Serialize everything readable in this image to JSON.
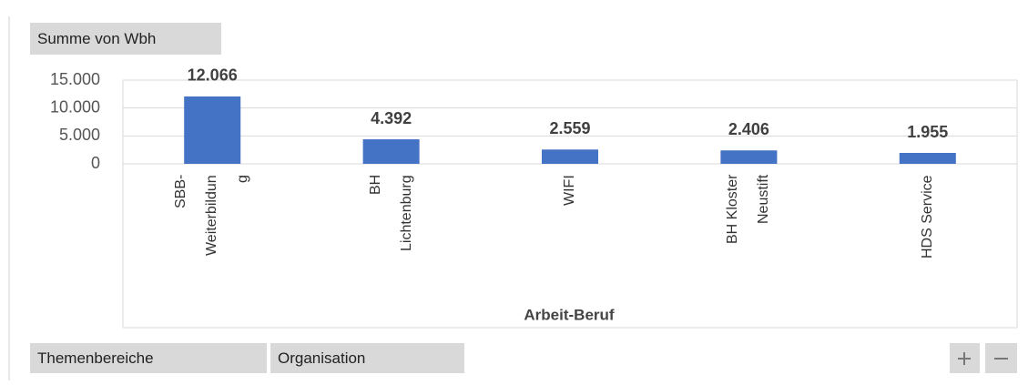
{
  "chart_data": {
    "type": "bar",
    "field_button": "Summe von Wbh",
    "x_label": "Arbeit-Beruf",
    "categories": [
      "SBB-Weiterbildung",
      "BH Lichtenburg",
      "WIFI",
      "BH Kloster Neustift",
      "HDS Service"
    ],
    "values": [
      12066,
      4392,
      2559,
      2406,
      1955
    ],
    "value_labels": [
      "12.066",
      "4.392",
      "2.559",
      "2.406",
      "1.955"
    ],
    "color": "#4472c4",
    "ylim": [
      0,
      15000
    ],
    "yticks": [
      0,
      {
        "value": 5000,
        "label": "5.000"
      },
      {
        "value": 10000,
        "label": "10.000"
      },
      {
        "value": 15000,
        "label": "15.000"
      }
    ],
    "grid": true,
    "filter_buttons": [
      "Themenbereiche",
      "Organisation"
    ]
  }
}
